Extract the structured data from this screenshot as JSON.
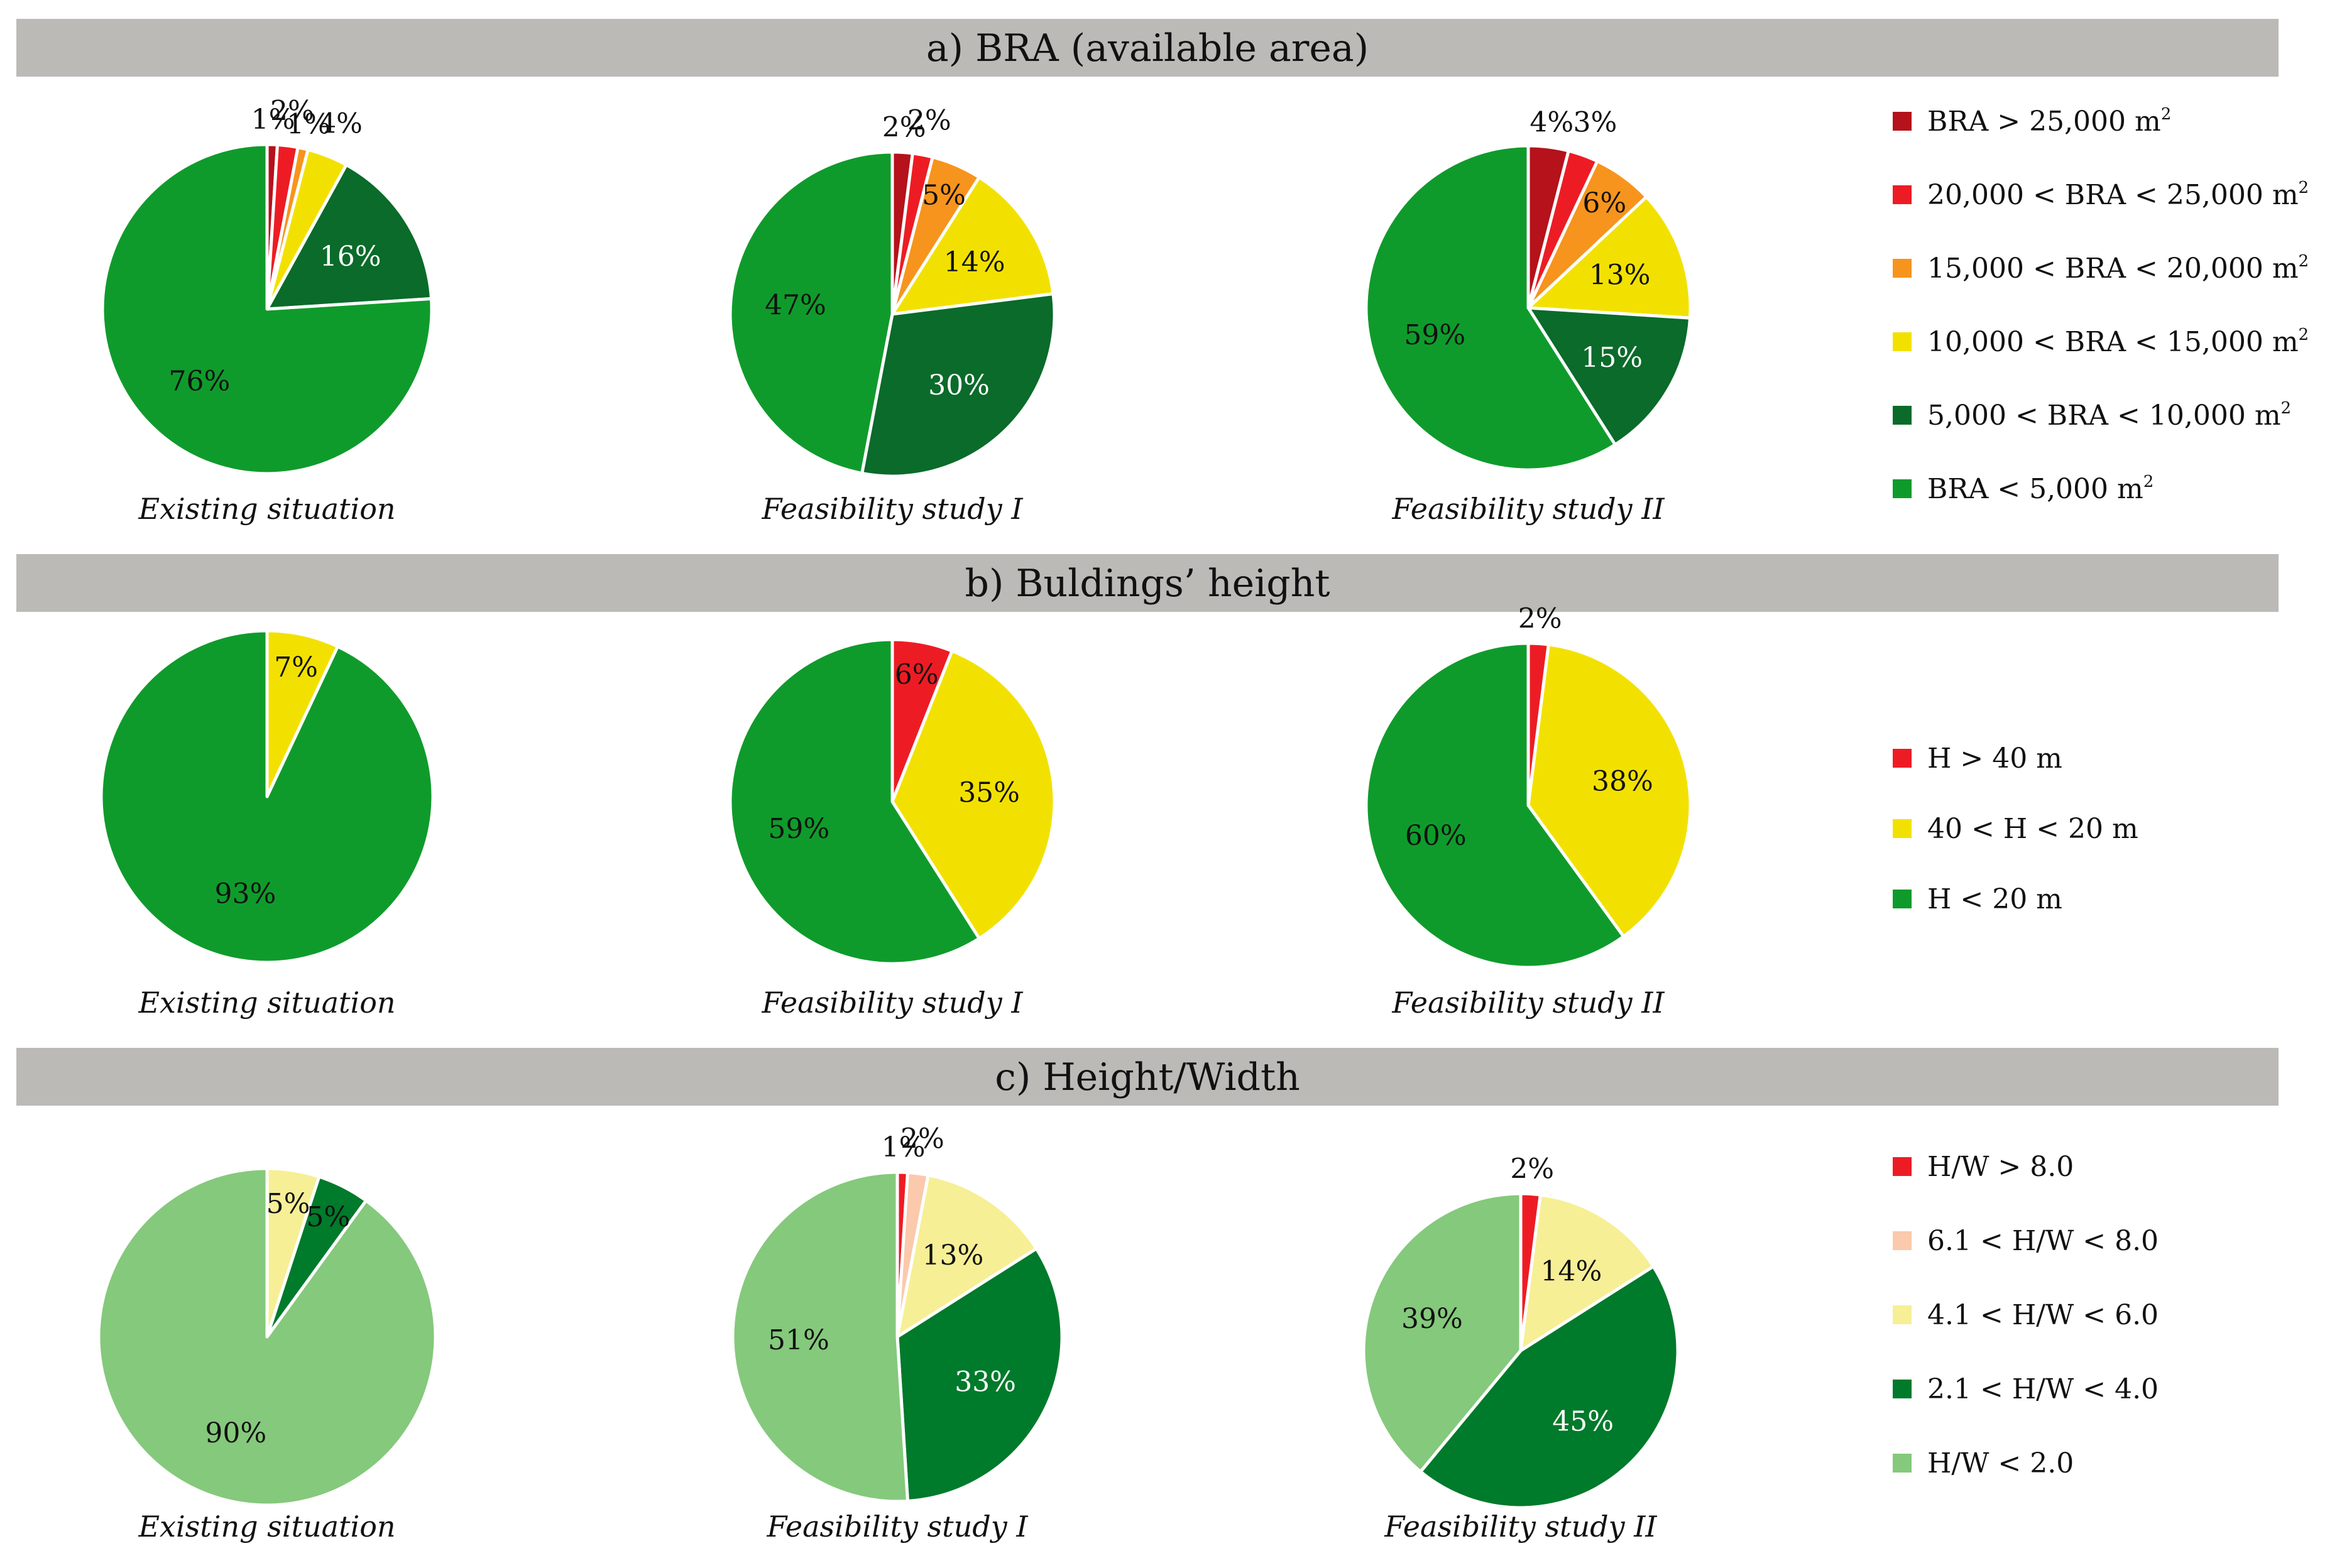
{
  "sections": [
    {
      "title": "a)  BRA (available area)",
      "legend": [
        {
          "label": "BRA > 25,000 m",
          "sup": "2",
          "color": "#b5121b"
        },
        {
          "label": "20,000 < BRA < 25,000 m",
          "sup": "2",
          "color": "#ed1c24"
        },
        {
          "label": "15,000 < BRA < 20,000 m",
          "sup": "2",
          "color": "#f7941d"
        },
        {
          "label": "10,000 < BRA <  15,000 m",
          "sup": "2",
          "color": "#f2e100"
        },
        {
          "label": "5,000 < BRA <  10,000 m",
          "sup": "2",
          "color": "#0a6b2a"
        },
        {
          "label": "BRA < 5,000 m",
          "sup": "2",
          "color": "#0f9b2b"
        }
      ]
    },
    {
      "title": "b)  Buldings’ height",
      "legend": [
        {
          "label": "H > 40 m",
          "sup": "",
          "color": "#ed1c24"
        },
        {
          "label": "40 < H < 20 m",
          "sup": "",
          "color": "#f2e100"
        },
        {
          "label": "H < 20 m",
          "sup": "",
          "color": "#0f9b2b"
        }
      ]
    },
    {
      "title": "c)  Height/Width",
      "legend": [
        {
          "label": "H/W > 8.0",
          "sup": "",
          "color": "#ed1c24"
        },
        {
          "label": "6.1 < H/W < 8.0",
          "sup": "",
          "color": "#fbc9ac"
        },
        {
          "label": "4.1 < H/W < 6.0",
          "sup": "",
          "color": "#f6ef96"
        },
        {
          "label": "2.1 < H/W < 4.0",
          "sup": "",
          "color": "#007a2b"
        },
        {
          "label": "H/W < 2.0",
          "sup": "",
          "color": "#85c97c"
        }
      ]
    }
  ],
  "chart_data": [
    {
      "type": "pie",
      "section": 0,
      "caption": "Existing situation",
      "values": [
        1,
        2,
        1,
        4,
        16,
        76
      ],
      "labels": [
        "1%",
        "2%",
        "1%",
        "4%",
        "16%",
        "76%"
      ],
      "colors": [
        "#b5121b",
        "#ed1c24",
        "#f7941d",
        "#f2e100",
        "#0a6b2a",
        "#0f9b2b"
      ],
      "label_colors": [
        "#111",
        "#111",
        "#111",
        "#111",
        "#ffffff",
        "#111"
      ]
    },
    {
      "type": "pie",
      "section": 0,
      "caption": "Feasibility study I",
      "values": [
        2,
        2,
        5,
        14,
        30,
        47
      ],
      "labels": [
        "2%",
        "2%",
        "5%",
        "14%",
        "30%",
        "47%"
      ],
      "colors": [
        "#b5121b",
        "#ed1c24",
        "#f7941d",
        "#f2e100",
        "#0a6b2a",
        "#0f9b2b"
      ],
      "label_colors": [
        "#111",
        "#111",
        "#111",
        "#111",
        "#ffffff",
        "#111"
      ]
    },
    {
      "type": "pie",
      "section": 0,
      "caption": "Feasibility study II",
      "values": [
        4,
        3,
        6,
        13,
        15,
        59
      ],
      "labels": [
        "4%",
        "3%",
        "6%",
        "13%",
        "15%",
        "59%"
      ],
      "colors": [
        "#b5121b",
        "#ed1c24",
        "#f7941d",
        "#f2e100",
        "#0a6b2a",
        "#0f9b2b"
      ],
      "label_colors": [
        "#111",
        "#111",
        "#111",
        "#111",
        "#ffffff",
        "#111"
      ]
    },
    {
      "type": "pie",
      "section": 1,
      "caption": "Existing situation",
      "values": [
        0,
        7,
        93
      ],
      "labels": [
        "",
        "7%",
        "93%"
      ],
      "colors": [
        "#ed1c24",
        "#f2e100",
        "#0f9b2b"
      ],
      "label_colors": [
        "#111",
        "#111",
        "#111"
      ]
    },
    {
      "type": "pie",
      "section": 1,
      "caption": "Feasibility study I",
      "values": [
        6,
        35,
        59
      ],
      "labels": [
        "6%",
        "35%",
        "59%"
      ],
      "colors": [
        "#ed1c24",
        "#f2e100",
        "#0f9b2b"
      ],
      "label_colors": [
        "#111",
        "#111",
        "#111"
      ]
    },
    {
      "type": "pie",
      "section": 1,
      "caption": "Feasibility study II",
      "values": [
        2,
        38,
        60
      ],
      "labels": [
        "2%",
        "38%",
        "60%"
      ],
      "colors": [
        "#ed1c24",
        "#f2e100",
        "#0f9b2b"
      ],
      "label_colors": [
        "#111",
        "#111",
        "#111"
      ]
    },
    {
      "type": "pie",
      "section": 2,
      "caption": "Existing situation",
      "values": [
        0,
        0,
        5,
        5,
        90
      ],
      "labels": [
        "",
        "",
        "5%",
        "5%",
        "90%"
      ],
      "colors": [
        "#ed1c24",
        "#fbc9ac",
        "#f6ef96",
        "#007a2b",
        "#85c97c"
      ],
      "label_colors": [
        "#111",
        "#111",
        "#111",
        "#111",
        "#111"
      ]
    },
    {
      "type": "pie",
      "section": 2,
      "caption": "Feasibility study I",
      "values": [
        1,
        2,
        13,
        33,
        51
      ],
      "labels": [
        "1%",
        "2%",
        "13%",
        "33%",
        "51%"
      ],
      "colors": [
        "#ed1c24",
        "#fbc9ac",
        "#f6ef96",
        "#007a2b",
        "#85c97c"
      ],
      "label_colors": [
        "#111",
        "#111",
        "#111",
        "#ffffff",
        "#111"
      ]
    },
    {
      "type": "pie",
      "section": 2,
      "caption": "Feasibility study II",
      "values": [
        2,
        0,
        14,
        45,
        39
      ],
      "labels": [
        "2%",
        "",
        "14%",
        "45%",
        "39%"
      ],
      "colors": [
        "#ed1c24",
        "#fbc9ac",
        "#f6ef96",
        "#007a2b",
        "#85c97c"
      ],
      "label_colors": [
        "#111",
        "#111",
        "#111",
        "#ffffff",
        "#111"
      ]
    }
  ]
}
